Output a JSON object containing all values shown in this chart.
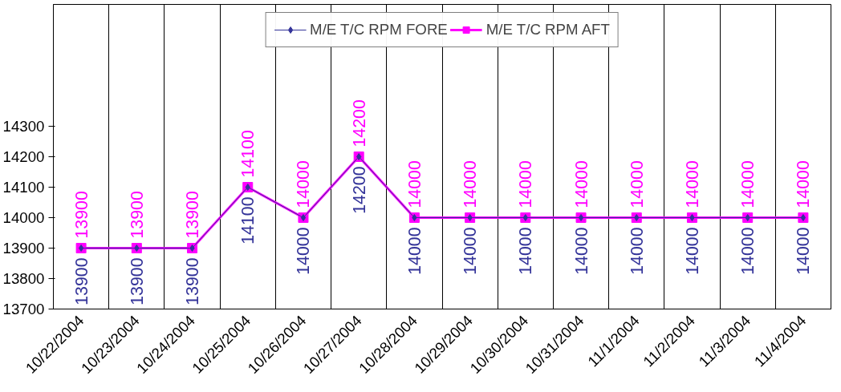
{
  "chart_data": {
    "type": "line",
    "categories": [
      "10/22/2004",
      "10/23/2004",
      "10/24/2004",
      "10/25/2004",
      "10/26/2004",
      "10/27/2004",
      "10/28/2004",
      "10/29/2004",
      "10/30/2004",
      "10/31/2004",
      "11/1/2004",
      "11/2/2004",
      "11/3/2004",
      "11/4/2004"
    ],
    "series": [
      {
        "name": "M/E T/C RPM FORE",
        "color": "#333399",
        "marker": "diamond",
        "values": [
          13900,
          13900,
          13900,
          14100,
          14000,
          14200,
          14000,
          14000,
          14000,
          14000,
          14000,
          14000,
          14000,
          14000
        ]
      },
      {
        "name": "M/E T/C RPM AFT",
        "color": "#ff00ff",
        "marker": "square",
        "values": [
          13900,
          13900,
          13900,
          14100,
          14000,
          14200,
          14000,
          14000,
          14000,
          14000,
          14000,
          14000,
          14000,
          14000
        ]
      }
    ],
    "ylim": [
      13700,
      14700
    ],
    "yticks": [
      13700,
      13800,
      13900,
      14000,
      14100,
      14200,
      14300
    ],
    "grid": "x",
    "legend": "top",
    "data_labels": true,
    "line_style": "solid"
  }
}
